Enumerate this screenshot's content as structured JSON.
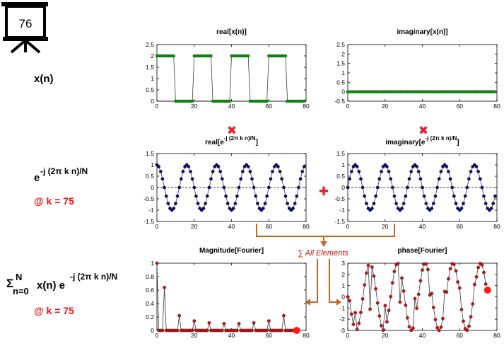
{
  "slide_number": "76",
  "left_labels": {
    "xn": "x(n)",
    "kernel_base": "e",
    "kernel_exp": "-j (2π k n)/N",
    "k_note_1": "@ k = 75",
    "sum_sigma": "Σ",
    "sum_top": "N",
    "sum_bottom": "n=0",
    "sum_body": "x(n) e",
    "sum_exp": "-j (2π k n)/N",
    "k_note_2": "@ k = 75"
  },
  "operators": {
    "times_1": "✖",
    "times_2": "✖",
    "plus": "✚",
    "sum_all": "∑ All Elements"
  },
  "colors": {
    "green_marker": "#00a000",
    "blue_marker": "#0a0a7a",
    "red_marker": "#cc1010",
    "operator_red": "#dd2233",
    "arrow_orange": "#c8641e",
    "note_red": "#ee1111",
    "line_dark": "#3c3c3c"
  },
  "chart_data": [
    {
      "id": "real_x",
      "type": "line",
      "title": "real[x(n)]",
      "xlim": [
        0,
        80
      ],
      "ylim": [
        0,
        2.5
      ],
      "xticks": [
        "0",
        "20",
        "40",
        "60",
        "80"
      ],
      "yticks": [
        "0",
        "0.5",
        "1",
        "1.5",
        "2",
        "2.5"
      ],
      "pattern": "square wave, period 20 samples, value 2 for n=0-9 and 0 for n=10-19",
      "n_samples": 80,
      "values": [
        2,
        2,
        2,
        2,
        2,
        2,
        2,
        2,
        2,
        2,
        0,
        0,
        0,
        0,
        0,
        0,
        0,
        0,
        0,
        0,
        2,
        2,
        2,
        2,
        2,
        2,
        2,
        2,
        2,
        2,
        0,
        0,
        0,
        0,
        0,
        0,
        0,
        0,
        0,
        0,
        2,
        2,
        2,
        2,
        2,
        2,
        2,
        2,
        2,
        2,
        0,
        0,
        0,
        0,
        0,
        0,
        0,
        0,
        0,
        0,
        2,
        2,
        2,
        2,
        2,
        2,
        2,
        2,
        2,
        2,
        0,
        0,
        0,
        0,
        0,
        0,
        0,
        0,
        0,
        0
      ]
    },
    {
      "id": "imag_x",
      "type": "line",
      "title": "imaginary[x(n)]",
      "xlim": [
        0,
        80
      ],
      "ylim": [
        -0.5,
        2.5
      ],
      "xticks": [
        "0",
        "20",
        "40",
        "60",
        "80"
      ],
      "yticks": [
        "-0.5",
        "0",
        "0.5",
        "1",
        "1.5",
        "2",
        "2.5"
      ],
      "pattern": "all zeros",
      "n_samples": 80
    },
    {
      "id": "real_e",
      "type": "line",
      "title_main": "real[e",
      "title_sup": "-j (2π k n)/N",
      "title_end": "]",
      "xlim": [
        0,
        80
      ],
      "ylim": [
        -1.5,
        1.5
      ],
      "xticks": [
        "0",
        "20",
        "40",
        "60",
        "80"
      ],
      "yticks": [
        "-1.5",
        "-1",
        "-0.5",
        "0",
        "0.5",
        "1",
        "1.5"
      ],
      "pattern": "cos(2π k n / N) with k=75, N=80",
      "k": 75,
      "N": 80
    },
    {
      "id": "imag_e",
      "type": "line",
      "title_main": "imaginary[e",
      "title_sup": "-j (2π k n)/N",
      "title_end": "]",
      "xlim": [
        0,
        80
      ],
      "ylim": [
        -1.5,
        1.5
      ],
      "xticks": [
        "0",
        "20",
        "40",
        "60",
        "80"
      ],
      "yticks": [
        "-1.5",
        "-1",
        "-0.5",
        "0",
        "0.5",
        "1",
        "1.5"
      ],
      "pattern": "-sin(2π k n / N) with k=75, N=80",
      "k": 75,
      "N": 80
    },
    {
      "id": "magnitude",
      "type": "line",
      "title": "Magnitude[Fourier]",
      "xlim": [
        0,
        80
      ],
      "ylim": [
        0,
        1
      ],
      "xticks": [
        "0",
        "20",
        "40",
        "60",
        "80"
      ],
      "yticks": [
        "0",
        "0.2",
        "0.4",
        "0.6",
        "0.8",
        "1"
      ],
      "pattern": "normalized DFT magnitude of x(n), computed k=0..74",
      "points_shown": 75,
      "highlight": {
        "x": 75,
        "y": 0
      }
    },
    {
      "id": "phase",
      "type": "line",
      "title": "phase[Fourier]",
      "xlim": [
        0,
        80
      ],
      "ylim": [
        -3,
        3
      ],
      "xticks": [
        "0",
        "20",
        "40",
        "60",
        "80"
      ],
      "yticks": [
        "-3",
        "-2",
        "-1",
        "0",
        "1",
        "2",
        "3"
      ],
      "pattern": "DFT phase of x(n), computed k=0..74",
      "points_shown": 75,
      "highlight": {
        "x": 75,
        "y": 0.6
      }
    }
  ]
}
